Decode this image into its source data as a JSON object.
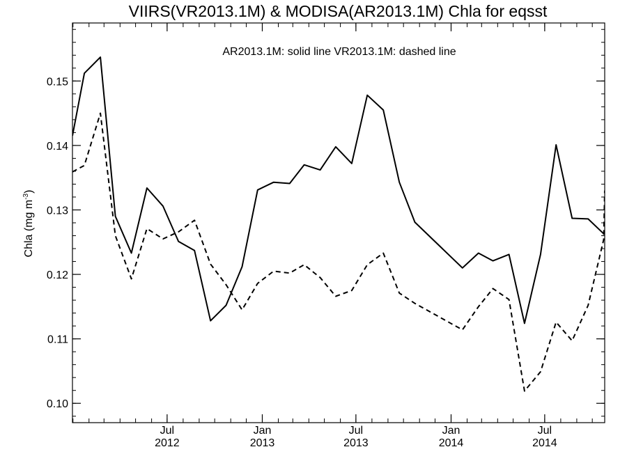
{
  "chart_data": {
    "type": "line",
    "title": "VIIRS(VR2013.1M) & MODISA(AR2013.1M)  Chla for eqsst",
    "annotation": "AR2013.1M: solid line   VR2013.1M: dashed line",
    "ylabel_main": "Chla (mg m",
    "ylabel_sup": "-3",
    "ylabel_tail": ")",
    "ylim": [
      0.097,
      0.159
    ],
    "xlim": [
      "2011-12-31",
      "2014-10-25"
    ],
    "yticks": [
      "0.10",
      "0.11",
      "0.12",
      "0.13",
      "0.14",
      "0.15"
    ],
    "xticks": [
      {
        "date": "2012-07-01",
        "month": "Jul",
        "year": "2012"
      },
      {
        "date": "2013-01-01",
        "month": "Jan",
        "year": "2013"
      },
      {
        "date": "2013-07-01",
        "month": "Jul",
        "year": "2013"
      },
      {
        "date": "2014-01-01",
        "month": "Jan",
        "year": "2014"
      },
      {
        "date": "2014-07-01",
        "month": "Jul",
        "year": "2014"
      }
    ],
    "series": [
      {
        "style": "solid",
        "x": [
          "2011-12-31",
          "2012-01-23",
          "2012-02-23",
          "2012-03-23",
          "2012-04-23",
          "2012-05-23",
          "2012-06-23",
          "2012-07-23",
          "2012-08-23",
          "2012-09-23",
          "2012-10-23",
          "2012-11-23",
          "2012-12-23",
          "2013-01-23",
          "2013-02-23",
          "2013-03-23",
          "2013-04-23",
          "2013-05-23",
          "2013-06-23",
          "2013-07-23",
          "2013-08-23",
          "2013-09-23",
          "2013-10-23",
          "2014-01-23",
          "2014-02-23",
          "2014-03-23",
          "2014-04-23",
          "2014-05-23",
          "2014-06-23",
          "2014-07-23",
          "2014-08-23",
          "2014-09-23",
          "2014-10-23"
        ],
        "y": [
          0.1415,
          0.1512,
          0.1537,
          0.129,
          0.1233,
          0.1334,
          0.1306,
          0.1251,
          0.1237,
          0.1128,
          0.1152,
          0.1212,
          0.1331,
          0.1343,
          0.1341,
          0.137,
          0.1362,
          0.1398,
          0.1372,
          0.1478,
          0.1455,
          0.1343,
          0.1281,
          0.121,
          0.1233,
          0.1221,
          0.1231,
          0.1124,
          0.1231,
          0.1401,
          0.1287,
          0.1286,
          0.1263
        ]
      },
      {
        "style": "dashed",
        "x": [
          "2011-12-31",
          "2012-01-23",
          "2012-02-23",
          "2012-03-23",
          "2012-04-23",
          "2012-05-23",
          "2012-06-23",
          "2012-07-23",
          "2012-08-23",
          "2012-09-23",
          "2012-10-23",
          "2012-11-23",
          "2012-12-23",
          "2013-01-23",
          "2013-02-23",
          "2013-03-23",
          "2013-04-23",
          "2013-05-23",
          "2013-06-23",
          "2013-07-23",
          "2013-08-23",
          "2013-09-23",
          "2013-10-23",
          "2014-01-23",
          "2014-02-23",
          "2014-03-23",
          "2014-04-23",
          "2014-05-23",
          "2014-06-23",
          "2014-07-23",
          "2014-08-23",
          "2014-09-23",
          "2014-10-23",
          "2014-10-25"
        ],
        "y": [
          0.1359,
          0.1369,
          0.145,
          0.126,
          0.1193,
          0.1271,
          0.1255,
          0.1266,
          0.1284,
          0.1216,
          0.1184,
          0.1145,
          0.1186,
          0.1205,
          0.1202,
          0.1215,
          0.1195,
          0.1166,
          0.1175,
          0.1215,
          0.1233,
          0.1171,
          0.1155,
          0.1114,
          0.115,
          0.1178,
          0.1161,
          0.1019,
          0.1049,
          0.1126,
          0.1097,
          0.1152,
          0.1254,
          0.133
        ]
      }
    ]
  }
}
